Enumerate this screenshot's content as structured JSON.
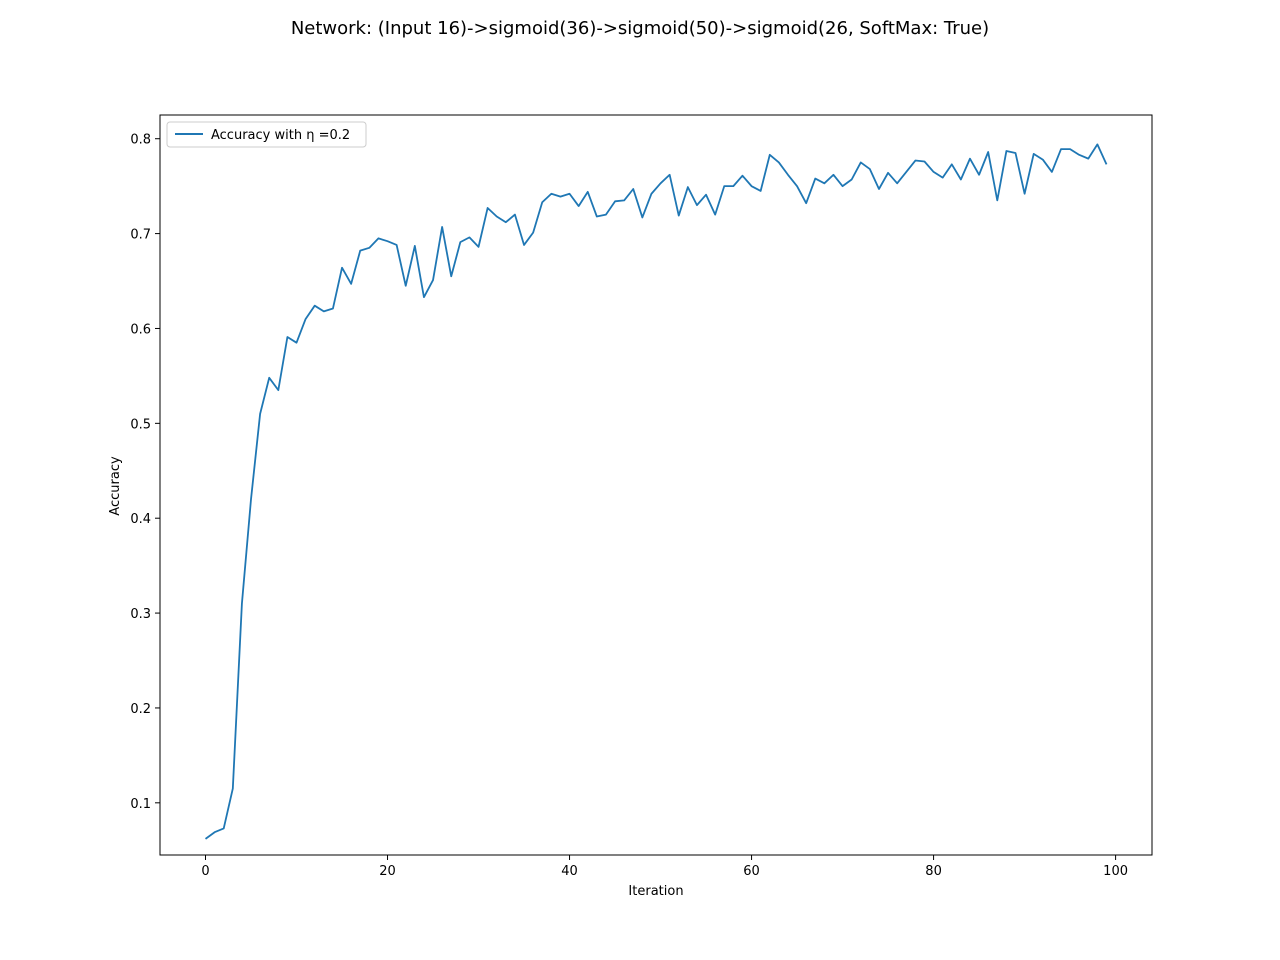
{
  "chart_data": {
    "type": "line",
    "title": "Network: (Input 16)->sigmoid(36)->sigmoid(50)->sigmoid(26, SoftMax: True)",
    "xlabel": "Iteration",
    "ylabel": "Accuracy",
    "xlim": [
      -5,
      104
    ],
    "ylim": [
      0.045,
      0.825
    ],
    "xticks": [
      0,
      20,
      40,
      60,
      80,
      100
    ],
    "yticks": [
      0.1,
      0.2,
      0.3,
      0.4,
      0.5,
      0.6,
      0.7,
      0.8
    ],
    "grid": false,
    "legend_position": "top-left",
    "series": [
      {
        "name": "Accuracy with η =0.2",
        "color": "#1f77b4",
        "x": [
          0,
          1,
          2,
          3,
          4,
          5,
          6,
          7,
          8,
          9,
          10,
          11,
          12,
          13,
          14,
          15,
          16,
          17,
          18,
          19,
          20,
          21,
          22,
          23,
          24,
          25,
          26,
          27,
          28,
          29,
          30,
          31,
          32,
          33,
          34,
          35,
          36,
          37,
          38,
          39,
          40,
          41,
          42,
          43,
          44,
          45,
          46,
          47,
          48,
          49,
          50,
          51,
          52,
          53,
          54,
          55,
          56,
          57,
          58,
          59,
          60,
          61,
          62,
          63,
          64,
          65,
          66,
          67,
          68,
          69,
          70,
          71,
          72,
          73,
          74,
          75,
          76,
          77,
          78,
          79,
          80,
          81,
          82,
          83,
          84,
          85,
          86,
          87,
          88,
          89,
          90,
          91,
          92,
          93,
          94,
          95,
          96,
          97,
          98,
          99
        ],
        "values": [
          0.062,
          0.069,
          0.073,
          0.115,
          0.31,
          0.42,
          0.51,
          0.548,
          0.535,
          0.591,
          0.585,
          0.61,
          0.624,
          0.618,
          0.621,
          0.664,
          0.647,
          0.682,
          0.685,
          0.695,
          0.692,
          0.688,
          0.645,
          0.687,
          0.633,
          0.651,
          0.707,
          0.655,
          0.691,
          0.696,
          0.686,
          0.727,
          0.718,
          0.712,
          0.72,
          0.688,
          0.701,
          0.733,
          0.742,
          0.739,
          0.742,
          0.729,
          0.744,
          0.718,
          0.72,
          0.734,
          0.735,
          0.747,
          0.717,
          0.742,
          0.753,
          0.762,
          0.719,
          0.749,
          0.73,
          0.741,
          0.72,
          0.75,
          0.75,
          0.761,
          0.75,
          0.745,
          0.783,
          0.775,
          0.762,
          0.75,
          0.732,
          0.758,
          0.753,
          0.762,
          0.75,
          0.757,
          0.775,
          0.768,
          0.747,
          0.764,
          0.753,
          0.765,
          0.777,
          0.776,
          0.765,
          0.759,
          0.773,
          0.757,
          0.779,
          0.762,
          0.786,
          0.735,
          0.787,
          0.785,
          0.742,
          0.784,
          0.778,
          0.765,
          0.789,
          0.789,
          0.783,
          0.779,
          0.794,
          0.773
        ]
      }
    ]
  }
}
